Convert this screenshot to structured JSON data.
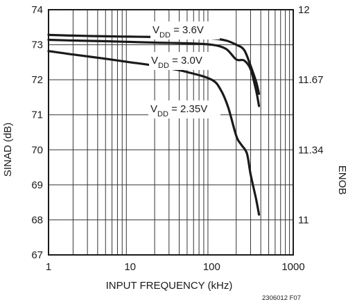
{
  "chart_data": {
    "type": "line",
    "title": "",
    "xlabel": "INPUT FREQUENCY (kHz)",
    "ylabel": "SINAD (dB)",
    "y2label": "ENOB",
    "xscale": "log",
    "xlim": [
      1,
      1000
    ],
    "ylim": [
      67,
      74
    ],
    "grid": true,
    "x_ticks": [
      "1",
      "10",
      "100",
      "1000"
    ],
    "y_ticks": [
      "67",
      "68",
      "69",
      "70",
      "71",
      "72",
      "73",
      "74"
    ],
    "y2_ticks": [
      {
        "label": "12",
        "sinad": 74
      },
      {
        "label": "11.67",
        "sinad": 72
      },
      {
        "label": "11.34",
        "sinad": 70
      },
      {
        "label": "11",
        "sinad": 68
      }
    ],
    "series": [
      {
        "name_base": "V",
        "name_sub": "DD",
        "name_value": " = 3.6V",
        "x": [
          1,
          2,
          5,
          10,
          20,
          50,
          100,
          150,
          200,
          250,
          300,
          350,
          380
        ],
        "y": [
          73.28,
          73.26,
          73.24,
          73.23,
          73.22,
          73.2,
          73.18,
          73.12,
          73.0,
          72.85,
          72.4,
          71.95,
          71.6
        ]
      },
      {
        "name_base": "V",
        "name_sub": "DD",
        "name_value": " = 3.0V",
        "x": [
          1,
          2,
          5,
          10,
          20,
          50,
          100,
          150,
          200,
          250,
          300,
          350,
          380
        ],
        "y": [
          73.14,
          73.12,
          73.1,
          73.08,
          73.06,
          73.04,
          73.0,
          72.88,
          72.58,
          72.55,
          72.3,
          71.7,
          71.25
        ]
      },
      {
        "name_base": "V",
        "name_sub": "DD",
        "name_value": " = 2.35V",
        "x": [
          1,
          2,
          5,
          10,
          20,
          50,
          100,
          130,
          160,
          200,
          230,
          270,
          300,
          350,
          380
        ],
        "y": [
          72.82,
          72.72,
          72.6,
          72.5,
          72.4,
          72.22,
          72.0,
          71.7,
          71.2,
          70.4,
          70.15,
          69.9,
          69.3,
          68.6,
          68.15
        ]
      }
    ]
  },
  "figure_code": "2306012 F07"
}
